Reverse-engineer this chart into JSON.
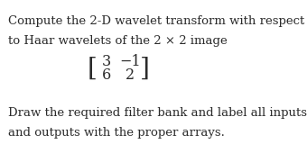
{
  "line1": "Compute the 2-D wavelet transform with respect",
  "line2": "to Haar wavelets of the 2 × 2 image",
  "matrix": [
    [
      3,
      -1
    ],
    [
      6,
      2
    ]
  ],
  "line3": "Draw the required filter bank and label all inputs",
  "line4": "and outputs with the proper arrays.",
  "text_color": "#2b2b2b",
  "background_color": "#ffffff",
  "fontsize_body": 9.5,
  "fontsize_matrix": 11.5
}
